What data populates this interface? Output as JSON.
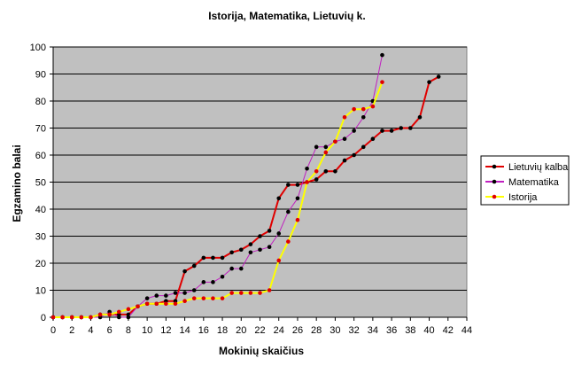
{
  "chart_data": {
    "type": "line",
    "title": "Istorija, Matematika, Lietuvių k.",
    "xlabel": "Mokinių skaičius",
    "ylabel": "Egzamino balai",
    "xlim": [
      0,
      44
    ],
    "ylim": [
      0,
      100
    ],
    "xticks": [
      0,
      2,
      4,
      6,
      8,
      10,
      12,
      14,
      16,
      18,
      20,
      22,
      24,
      26,
      28,
      30,
      32,
      34,
      36,
      38,
      40,
      42,
      44
    ],
    "yticks": [
      0,
      10,
      20,
      30,
      40,
      50,
      60,
      70,
      80,
      90,
      100
    ],
    "grid": "horizontal",
    "legend_position": "right",
    "plot_background": "#c0c0c0",
    "series": [
      {
        "name": "Lietuvių kalba",
        "line_color": "#e00000",
        "marker_color": "#000000",
        "x": [
          0,
          1,
          2,
          3,
          4,
          5,
          6,
          7,
          8,
          9,
          10,
          11,
          12,
          13,
          14,
          15,
          16,
          17,
          18,
          19,
          20,
          21,
          22,
          23,
          24,
          25,
          26,
          27,
          28,
          29,
          30,
          31,
          32,
          33,
          34,
          35,
          36,
          37,
          38,
          39,
          40,
          41
        ],
        "y": [
          0,
          0,
          0,
          0,
          0,
          1,
          1,
          1,
          1,
          4,
          5,
          5,
          6,
          6,
          17,
          19,
          22,
          22,
          22,
          24,
          25,
          27,
          30,
          32,
          44,
          49,
          49,
          50,
          51,
          54,
          54,
          58,
          60,
          63,
          66,
          69,
          69,
          70,
          70,
          74,
          87,
          89
        ]
      },
      {
        "name": "Matematika",
        "line_color": "#c020c0",
        "marker_color": "#000000",
        "x": [
          0,
          1,
          2,
          3,
          4,
          5,
          6,
          7,
          8,
          9,
          10,
          11,
          12,
          13,
          14,
          15,
          16,
          17,
          18,
          19,
          20,
          21,
          22,
          23,
          24,
          25,
          26,
          27,
          28,
          29,
          30,
          31,
          32,
          33,
          34,
          35
        ],
        "y": [
          0,
          0,
          0,
          0,
          0,
          0,
          2,
          0,
          0,
          4,
          7,
          8,
          8,
          9,
          9,
          10,
          13,
          13,
          15,
          18,
          18,
          24,
          25,
          26,
          31,
          39,
          44,
          55,
          63,
          63,
          65,
          66,
          69,
          74,
          80,
          97
        ]
      },
      {
        "name": "Istorija",
        "line_color": "#ffff00",
        "marker_color": "#e00000",
        "x": [
          0,
          1,
          2,
          3,
          4,
          5,
          6,
          7,
          8,
          9,
          10,
          11,
          12,
          13,
          14,
          15,
          16,
          17,
          18,
          19,
          20,
          21,
          22,
          23,
          24,
          25,
          26,
          27,
          28,
          29,
          30,
          31,
          32,
          33,
          34,
          35
        ],
        "y": [
          0,
          0,
          0,
          0,
          0,
          1,
          1,
          2,
          3,
          4,
          5,
          5,
          5,
          5,
          6,
          7,
          7,
          7,
          7,
          9,
          9,
          9,
          9,
          10,
          21,
          28,
          36,
          50,
          54,
          61,
          65,
          74,
          77,
          77,
          78,
          87
        ]
      }
    ]
  }
}
